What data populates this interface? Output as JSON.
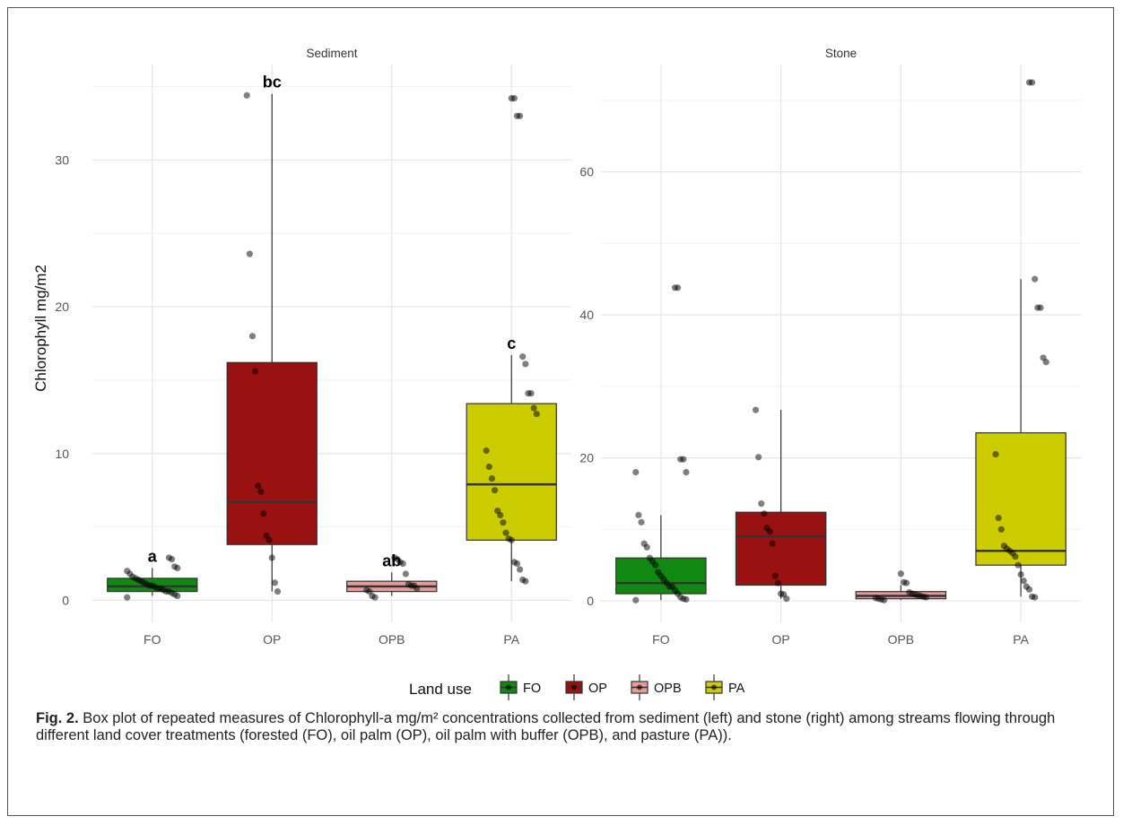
{
  "chart_data": {
    "type": "box",
    "ylabel": "Chlorophyll mg/m2",
    "categories": [
      "FO",
      "OP",
      "OPB",
      "PA"
    ],
    "colors": {
      "FO": "#118811",
      "OP": "#9a1111",
      "OPB": "#e79a9a",
      "PA": "#cccc00"
    },
    "legend": {
      "title": "Land use",
      "items": [
        "FO",
        "OP",
        "OPB",
        "PA"
      ],
      "position": "bottom"
    },
    "grid": true,
    "panels": [
      {
        "title": "Sediment",
        "ylim": [
          -1.5,
          36.5
        ],
        "yticks": [
          0,
          10,
          20,
          30
        ],
        "boxes": [
          {
            "category": "FO",
            "min": 0.3,
            "q1": 0.6,
            "median": 0.95,
            "q3": 1.5,
            "max": 2.2,
            "letter": "a",
            "points": [
              0.2,
              0.3,
              0.4,
              0.5,
              0.6,
              0.6,
              0.7,
              0.8,
              0.8,
              0.9,
              1.0,
              1.0,
              1.1,
              1.2,
              1.3,
              1.4,
              1.5,
              1.6,
              1.8,
              2.0,
              2.2,
              2.3,
              2.8,
              2.9
            ]
          },
          {
            "category": "OP",
            "min": 0.6,
            "q1": 3.8,
            "median": 6.7,
            "q3": 16.2,
            "max": 34.5,
            "letter": "bc",
            "points": [
              0.6,
              1.2,
              2.9,
              4.1,
              4.4,
              5.9,
              7.4,
              7.8,
              15.6,
              18.0,
              23.6,
              34.4
            ]
          },
          {
            "category": "OPB",
            "min": 0.3,
            "q1": 0.6,
            "median": 0.95,
            "q3": 1.3,
            "max": 1.9,
            "letter": "ab",
            "points": [
              0.2,
              0.3,
              0.6,
              0.7,
              0.8,
              1.0,
              1.0,
              1.1,
              1.8,
              2.5,
              2.6,
              2.8,
              2.9
            ]
          },
          {
            "category": "PA",
            "min": 1.3,
            "q1": 4.1,
            "median": 7.9,
            "q3": 13.4,
            "max": 16.7,
            "letter": "c",
            "points": [
              1.3,
              1.4,
              2.1,
              2.5,
              2.6,
              4.1,
              4.2,
              4.6,
              5.3,
              5.8,
              6.1,
              7.5,
              8.3,
              9.1,
              10.2,
              12.7,
              13.1,
              14.1,
              14.1,
              16.1,
              16.6,
              33.0,
              33.0,
              34.2,
              34.2
            ]
          }
        ]
      },
      {
        "title": "Stone",
        "ylim": [
          -3,
          75
        ],
        "yticks": [
          0,
          20,
          40,
          60
        ],
        "boxes": [
          {
            "category": "FO",
            "min": 0.1,
            "q1": 1.0,
            "median": 2.5,
            "q3": 6.0,
            "max": 12.0,
            "points": [
              0.1,
              0.2,
              0.3,
              0.5,
              1.0,
              1.5,
              2.0,
              2.0,
              2.5,
              3.0,
              3.5,
              4.0,
              5.0,
              5.5,
              6.0,
              7.5,
              8.0,
              11.0,
              12.0,
              18.0,
              18.0,
              19.8,
              19.8,
              43.8,
              43.8
            ]
          },
          {
            "category": "OP",
            "min": 0.3,
            "q1": 2.2,
            "median": 9.0,
            "q3": 12.4,
            "max": 26.7,
            "points": [
              0.3,
              0.9,
              1.0,
              2.5,
              3.5,
              8.0,
              9.7,
              10.2,
              12.2,
              13.6,
              20.1,
              26.7
            ]
          },
          {
            "category": "OPB",
            "min": 0.1,
            "q1": 0.3,
            "median": 0.7,
            "q3": 1.3,
            "max": 2.2,
            "points": [
              0.1,
              0.2,
              0.3,
              0.4,
              0.5,
              0.6,
              0.7,
              0.8,
              0.9,
              1.0,
              1.2,
              2.5,
              2.6,
              3.8
            ]
          },
          {
            "category": "PA",
            "min": 0.6,
            "q1": 5.0,
            "median": 7.0,
            "q3": 23.5,
            "max": 45.0,
            "points": [
              0.5,
              0.6,
              1.6,
              2.0,
              2.8,
              3.7,
              5.0,
              6.2,
              6.7,
              7.0,
              7.3,
              7.7,
              10.0,
              11.6,
              20.5,
              33.4,
              34.0,
              41.0,
              41.0,
              45.0,
              72.5,
              72.5
            ]
          }
        ]
      }
    ]
  },
  "caption": {
    "fig_label": "Fig. 2.",
    "text": " Box plot of repeated measures of Chlorophyll-a mg/m² concentrations collected from sediment (left) and stone (right) among streams flowing through different land cover treatments (forested (FO), oil palm (OP), oil palm with buffer (OPB), and pasture (PA))."
  }
}
